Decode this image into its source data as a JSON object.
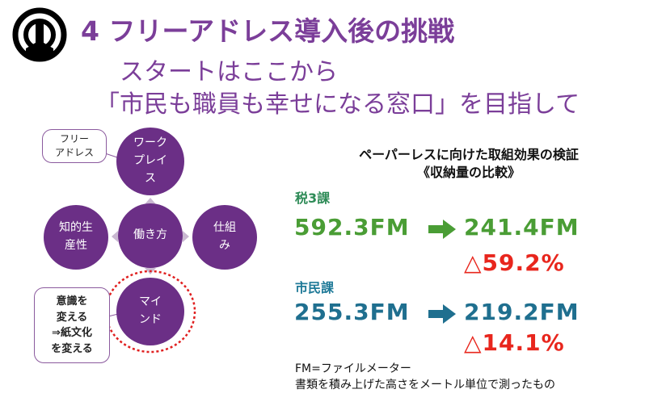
{
  "header": {
    "title": "4 フリーアドレス導入後の挑戦",
    "subtitle_1": "スタートはここから",
    "subtitle_2": "「市民も職員も幸せになる窓口」を目指して"
  },
  "diagram": {
    "top_circle": "ワーク\nプレイ\nス",
    "center_circle": "働き方",
    "left_circle": "知的生\n産性",
    "right_circle": "仕組\nみ",
    "bottom_circle": "マイ\nンド",
    "callout_top": "フリー\nアドレス",
    "callout_bottom": "意識を\n変える\n⇒紙文化\nを変える"
  },
  "panel": {
    "heading": "ペーパーレスに向けた取組効果の検証",
    "subheading": "《収納量の比較》",
    "dept_1": {
      "name": "税3課",
      "before": "592.3FM",
      "after": "241.4FM",
      "reduction": "△59.2%"
    },
    "dept_2": {
      "name": "市民課",
      "before": "255.3FM",
      "after": "219.2FM",
      "reduction": "△14.1%"
    },
    "note_1": "FM=ファイルメーター",
    "note_2": "書類を積み上げた高さをメートル単位で測ったもの"
  },
  "colors": {
    "purple": "#7b3e99",
    "circle": "#6b2f86",
    "green": "#4a9d35",
    "blue": "#1f6f8f",
    "red": "#e8261d"
  },
  "icons": [
    "emblem-logo",
    "right-arrow-icon"
  ]
}
